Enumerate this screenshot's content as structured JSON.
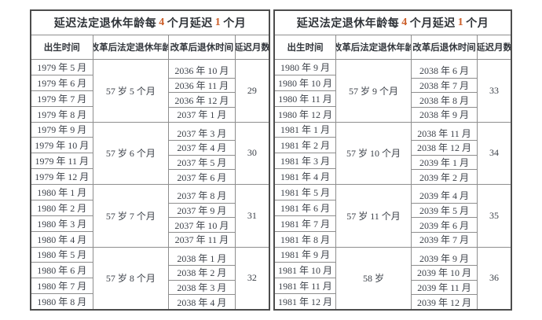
{
  "tables": [
    {
      "title": {
        "prefix": "延迟法定退休年龄每",
        "num1": "4",
        "mid": "个月延迟",
        "num2": "1",
        "suffix": "个月"
      },
      "columns": [
        "出生时间",
        "改革后法定退休年龄",
        "改革后退休时间",
        "延迟月数"
      ],
      "groups": [
        {
          "births": [
            "1979 年 5 月",
            "1979 年 6 月",
            "1979 年 7 月",
            "1979 年 8 月"
          ],
          "age": "57 岁 5 个月",
          "retirements": [
            "2036 年 10 月",
            "2036 年 11 月",
            "2036 年 12 月",
            "2037 年 1 月"
          ],
          "delay": "29"
        },
        {
          "births": [
            "1979 年 9 月",
            "1979 年 10 月",
            "1979 年 11 月",
            "1979 年 12 月"
          ],
          "age": "57 岁 6 个月",
          "retirements": [
            "2037 年 3 月",
            "2037 年 4 月",
            "2037 年 5 月",
            "2037 年 6 月"
          ],
          "delay": "30"
        },
        {
          "births": [
            "1980 年 1 月",
            "1980 年 2 月",
            "1980 年 3 月",
            "1980 年 4 月"
          ],
          "age": "57 岁 7 个月",
          "retirements": [
            "2037 年 8 月",
            "2037 年 9 月",
            "2037 年 10 月",
            "2037 年 11 月"
          ],
          "delay": "31"
        },
        {
          "births": [
            "1980 年 5 月",
            "1980 年 6 月",
            "1980 年 7 月",
            "1980 年 8 月"
          ],
          "age": "57 岁 8 个月",
          "retirements": [
            "2038 年 1 月",
            "2038 年 2 月",
            "2038 年 3 月",
            "2038 年 4 月"
          ],
          "delay": "32"
        }
      ]
    },
    {
      "title": {
        "prefix": "延迟法定退休年龄每",
        "num1": "4",
        "mid": "个月延迟",
        "num2": "1",
        "suffix": "个月"
      },
      "columns": [
        "出生时间",
        "改革后法定退休年龄",
        "改革后退休时间",
        "延迟月数"
      ],
      "groups": [
        {
          "births": [
            "1980 年 9 月",
            "1980 年 10 月",
            "1980 年 11 月",
            "1980 年 12 月"
          ],
          "age": "57 岁 9 个月",
          "retirements": [
            "2038 年 6 月",
            "2038 年 7 月",
            "2038 年 8 月",
            "2038 年 9 月"
          ],
          "delay": "33"
        },
        {
          "births": [
            "1981 年 1 月",
            "1981 年 2 月",
            "1981 年 3 月",
            "1981 年 4 月"
          ],
          "age": "57 岁 10 个月",
          "retirements": [
            "2038 年 11 月",
            "2038 年 12 月",
            "2039 年 1 月",
            "2039 年 2 月"
          ],
          "delay": "34"
        },
        {
          "births": [
            "1981 年 5 月",
            "1981 年 6 月",
            "1981 年 7 月",
            "1981 年 8 月"
          ],
          "age": "57 岁 11 个月",
          "retirements": [
            "2039 年 4 月",
            "2039 年 5 月",
            "2039 年 6 月",
            "2039 年 7 月"
          ],
          "delay": "35"
        },
        {
          "births": [
            "1981 年 9 月",
            "1981 年 10 月",
            "1981 年 11 月",
            "1981 年 12 月"
          ],
          "age": "58 岁",
          "retirements": [
            "2039 年 9 月",
            "2039 年 10 月",
            "2039 年 11 月",
            "2039 年 12 月"
          ],
          "delay": "36"
        }
      ]
    }
  ],
  "colors": {
    "accent": "#cc5f2a",
    "inner_line": "#8e8e8e",
    "outer_line": "#4d4d4d",
    "text": "#3c4149"
  }
}
